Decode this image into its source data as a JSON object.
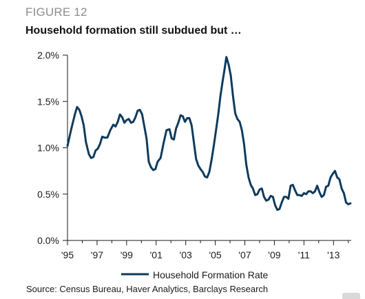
{
  "figure": {
    "label": "FIGURE 12",
    "title": "Household formation still subdued but …",
    "source": "Source: Census Bureau, Haver Analytics, Barclays Research"
  },
  "chart_data": {
    "type": "line",
    "title": "Household formation still subdued but …",
    "xlabel": "",
    "ylabel": "",
    "xlim": [
      1995,
      2014.2
    ],
    "ylim": [
      0,
      2.0
    ],
    "x_ticks": [
      "'95",
      "'97",
      "'99",
      "'01",
      "'03",
      "'05",
      "'07",
      "'09",
      "'11",
      "'13"
    ],
    "y_ticks": [
      "0.0%",
      "0.5%",
      "1.0%",
      "1.5%",
      "2.0%"
    ],
    "y_tick_values": [
      0,
      0.5,
      1.0,
      1.5,
      2.0
    ],
    "grid": false,
    "legend_position": "bottom-center",
    "color": "#0d3a5c",
    "series": [
      {
        "name": "Household Formation Rate",
        "x": [
          1995.0,
          1995.25,
          1995.5,
          1995.65,
          1995.8,
          1995.95,
          1996.1,
          1996.25,
          1996.45,
          1996.6,
          1996.75,
          1996.9,
          1997.05,
          1997.2,
          1997.35,
          1997.5,
          1997.7,
          1997.9,
          1998.1,
          1998.25,
          1998.4,
          1998.55,
          1998.7,
          1998.85,
          1999.0,
          1999.15,
          1999.3,
          1999.45,
          1999.6,
          1999.75,
          1999.9,
          2000.05,
          2000.2,
          2000.35,
          2000.5,
          2000.65,
          2000.8,
          2000.95,
          2001.1,
          2001.3,
          2001.5,
          2001.7,
          2001.9,
          2002.05,
          2002.2,
          2002.35,
          2002.5,
          2002.65,
          2002.8,
          2002.95,
          2003.1,
          2003.25,
          2003.4,
          2003.55,
          2003.7,
          2003.85,
          2004.0,
          2004.15,
          2004.3,
          2004.45,
          2004.6,
          2004.75,
          2004.9,
          2005.05,
          2005.2,
          2005.35,
          2005.5,
          2005.6,
          2005.75,
          2005.9,
          2006.05,
          2006.2,
          2006.35,
          2006.5,
          2006.65,
          2006.8,
          2006.95,
          2007.1,
          2007.25,
          2007.4,
          2007.55,
          2007.7,
          2007.85,
          2008.0,
          2008.15,
          2008.3,
          2008.45,
          2008.6,
          2008.75,
          2008.9,
          2009.05,
          2009.2,
          2009.35,
          2009.5,
          2009.65,
          2009.8,
          2009.95,
          2010.1,
          2010.25,
          2010.4,
          2010.55,
          2010.7,
          2010.85,
          2011.0,
          2011.15,
          2011.3,
          2011.45,
          2011.6,
          2011.75,
          2011.9,
          2012.05,
          2012.2,
          2012.35,
          2012.5,
          2012.65,
          2012.8,
          2012.95,
          2013.1,
          2013.25,
          2013.4,
          2013.55,
          2013.7,
          2013.85,
          2014.0,
          2014.15
        ],
        "values": [
          1.02,
          1.2,
          1.36,
          1.44,
          1.41,
          1.34,
          1.24,
          1.06,
          0.93,
          0.89,
          0.9,
          0.97,
          0.99,
          1.04,
          1.12,
          1.11,
          1.11,
          1.19,
          1.25,
          1.23,
          1.28,
          1.36,
          1.33,
          1.27,
          1.3,
          1.31,
          1.27,
          1.28,
          1.33,
          1.4,
          1.41,
          1.36,
          1.23,
          1.1,
          0.85,
          0.79,
          0.76,
          0.77,
          0.85,
          0.89,
          1.05,
          1.19,
          1.2,
          1.1,
          1.09,
          1.21,
          1.27,
          1.35,
          1.34,
          1.28,
          1.32,
          1.32,
          1.24,
          1.06,
          0.88,
          0.81,
          0.77,
          0.74,
          0.69,
          0.68,
          0.74,
          0.87,
          1.02,
          1.19,
          1.36,
          1.56,
          1.72,
          1.82,
          1.98,
          1.9,
          1.78,
          1.56,
          1.37,
          1.31,
          1.28,
          1.19,
          1.04,
          0.82,
          0.68,
          0.6,
          0.56,
          0.49,
          0.5,
          0.55,
          0.56,
          0.47,
          0.43,
          0.44,
          0.48,
          0.47,
          0.38,
          0.33,
          0.34,
          0.41,
          0.47,
          0.47,
          0.45,
          0.59,
          0.6,
          0.54,
          0.49,
          0.49,
          0.48,
          0.51,
          0.5,
          0.53,
          0.53,
          0.51,
          0.53,
          0.59,
          0.52,
          0.47,
          0.49,
          0.58,
          0.59,
          0.68,
          0.72,
          0.75,
          0.68,
          0.66,
          0.56,
          0.51,
          0.41,
          0.39,
          0.4
        ]
      }
    ]
  }
}
